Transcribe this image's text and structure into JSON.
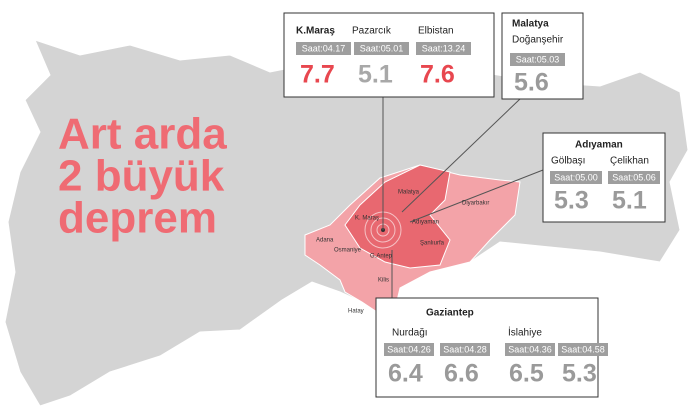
{
  "title_lines": [
    "Art arda",
    "2 büyük",
    "deprem"
  ],
  "callouts": [
    {
      "districts": [
        {
          "name": "K.Maraş",
          "quakes": [
            {
              "time": "Saat:04.17",
              "magnitude": "7.7",
              "color": "#e8474f"
            }
          ]
        },
        {
          "name": "Pazarcık",
          "quakes": [
            {
              "time": "Saat:05.01",
              "magnitude": "5.1",
              "color": "#a8a8a8"
            }
          ]
        },
        {
          "name": "Elbistan",
          "quakes": [
            {
              "time": "Saat:13.24",
              "magnitude": "7.6",
              "color": "#e8474f"
            }
          ]
        }
      ]
    },
    {
      "province": "Malatya",
      "districts": [
        {
          "name": "Doğanşehir",
          "quakes": [
            {
              "time": "Saat:05.03",
              "magnitude": "5.6",
              "color": "#9a9a9a"
            }
          ]
        }
      ]
    },
    {
      "province": "Adıyaman",
      "districts": [
        {
          "name": "Gölbaşı",
          "quakes": [
            {
              "time": "Saat:05.00",
              "magnitude": "5.3",
              "color": "#9a9a9a"
            }
          ]
        },
        {
          "name": "Çelikhan",
          "quakes": [
            {
              "time": "Saat:05.06",
              "magnitude": "5.1",
              "color": "#9a9a9a"
            }
          ]
        }
      ]
    },
    {
      "province": "Gaziantep",
      "districts": [
        {
          "name": "Nurdağı",
          "quakes": [
            {
              "time": "Saat:04.26",
              "magnitude": "6.4",
              "color": "#9a9a9a"
            },
            {
              "time": "Saat:04.28",
              "magnitude": "6.6",
              "color": "#9a9a9a"
            }
          ]
        },
        {
          "name": "İslahiye",
          "quakes": [
            {
              "time": "Saat:04.36",
              "magnitude": "6.5",
              "color": "#9a9a9a"
            },
            {
              "time": "Saat:04.58",
              "magnitude": "5.3",
              "color": "#9a9a9a"
            }
          ]
        }
      ]
    }
  ],
  "map_labels": [
    "Malatya",
    "K. Maraş",
    "Adıyaman",
    "Diyarbakır",
    "Adana",
    "Osmaniye",
    "G.Antep",
    "Şanlıurfa",
    "Kilis",
    "Hatay"
  ]
}
